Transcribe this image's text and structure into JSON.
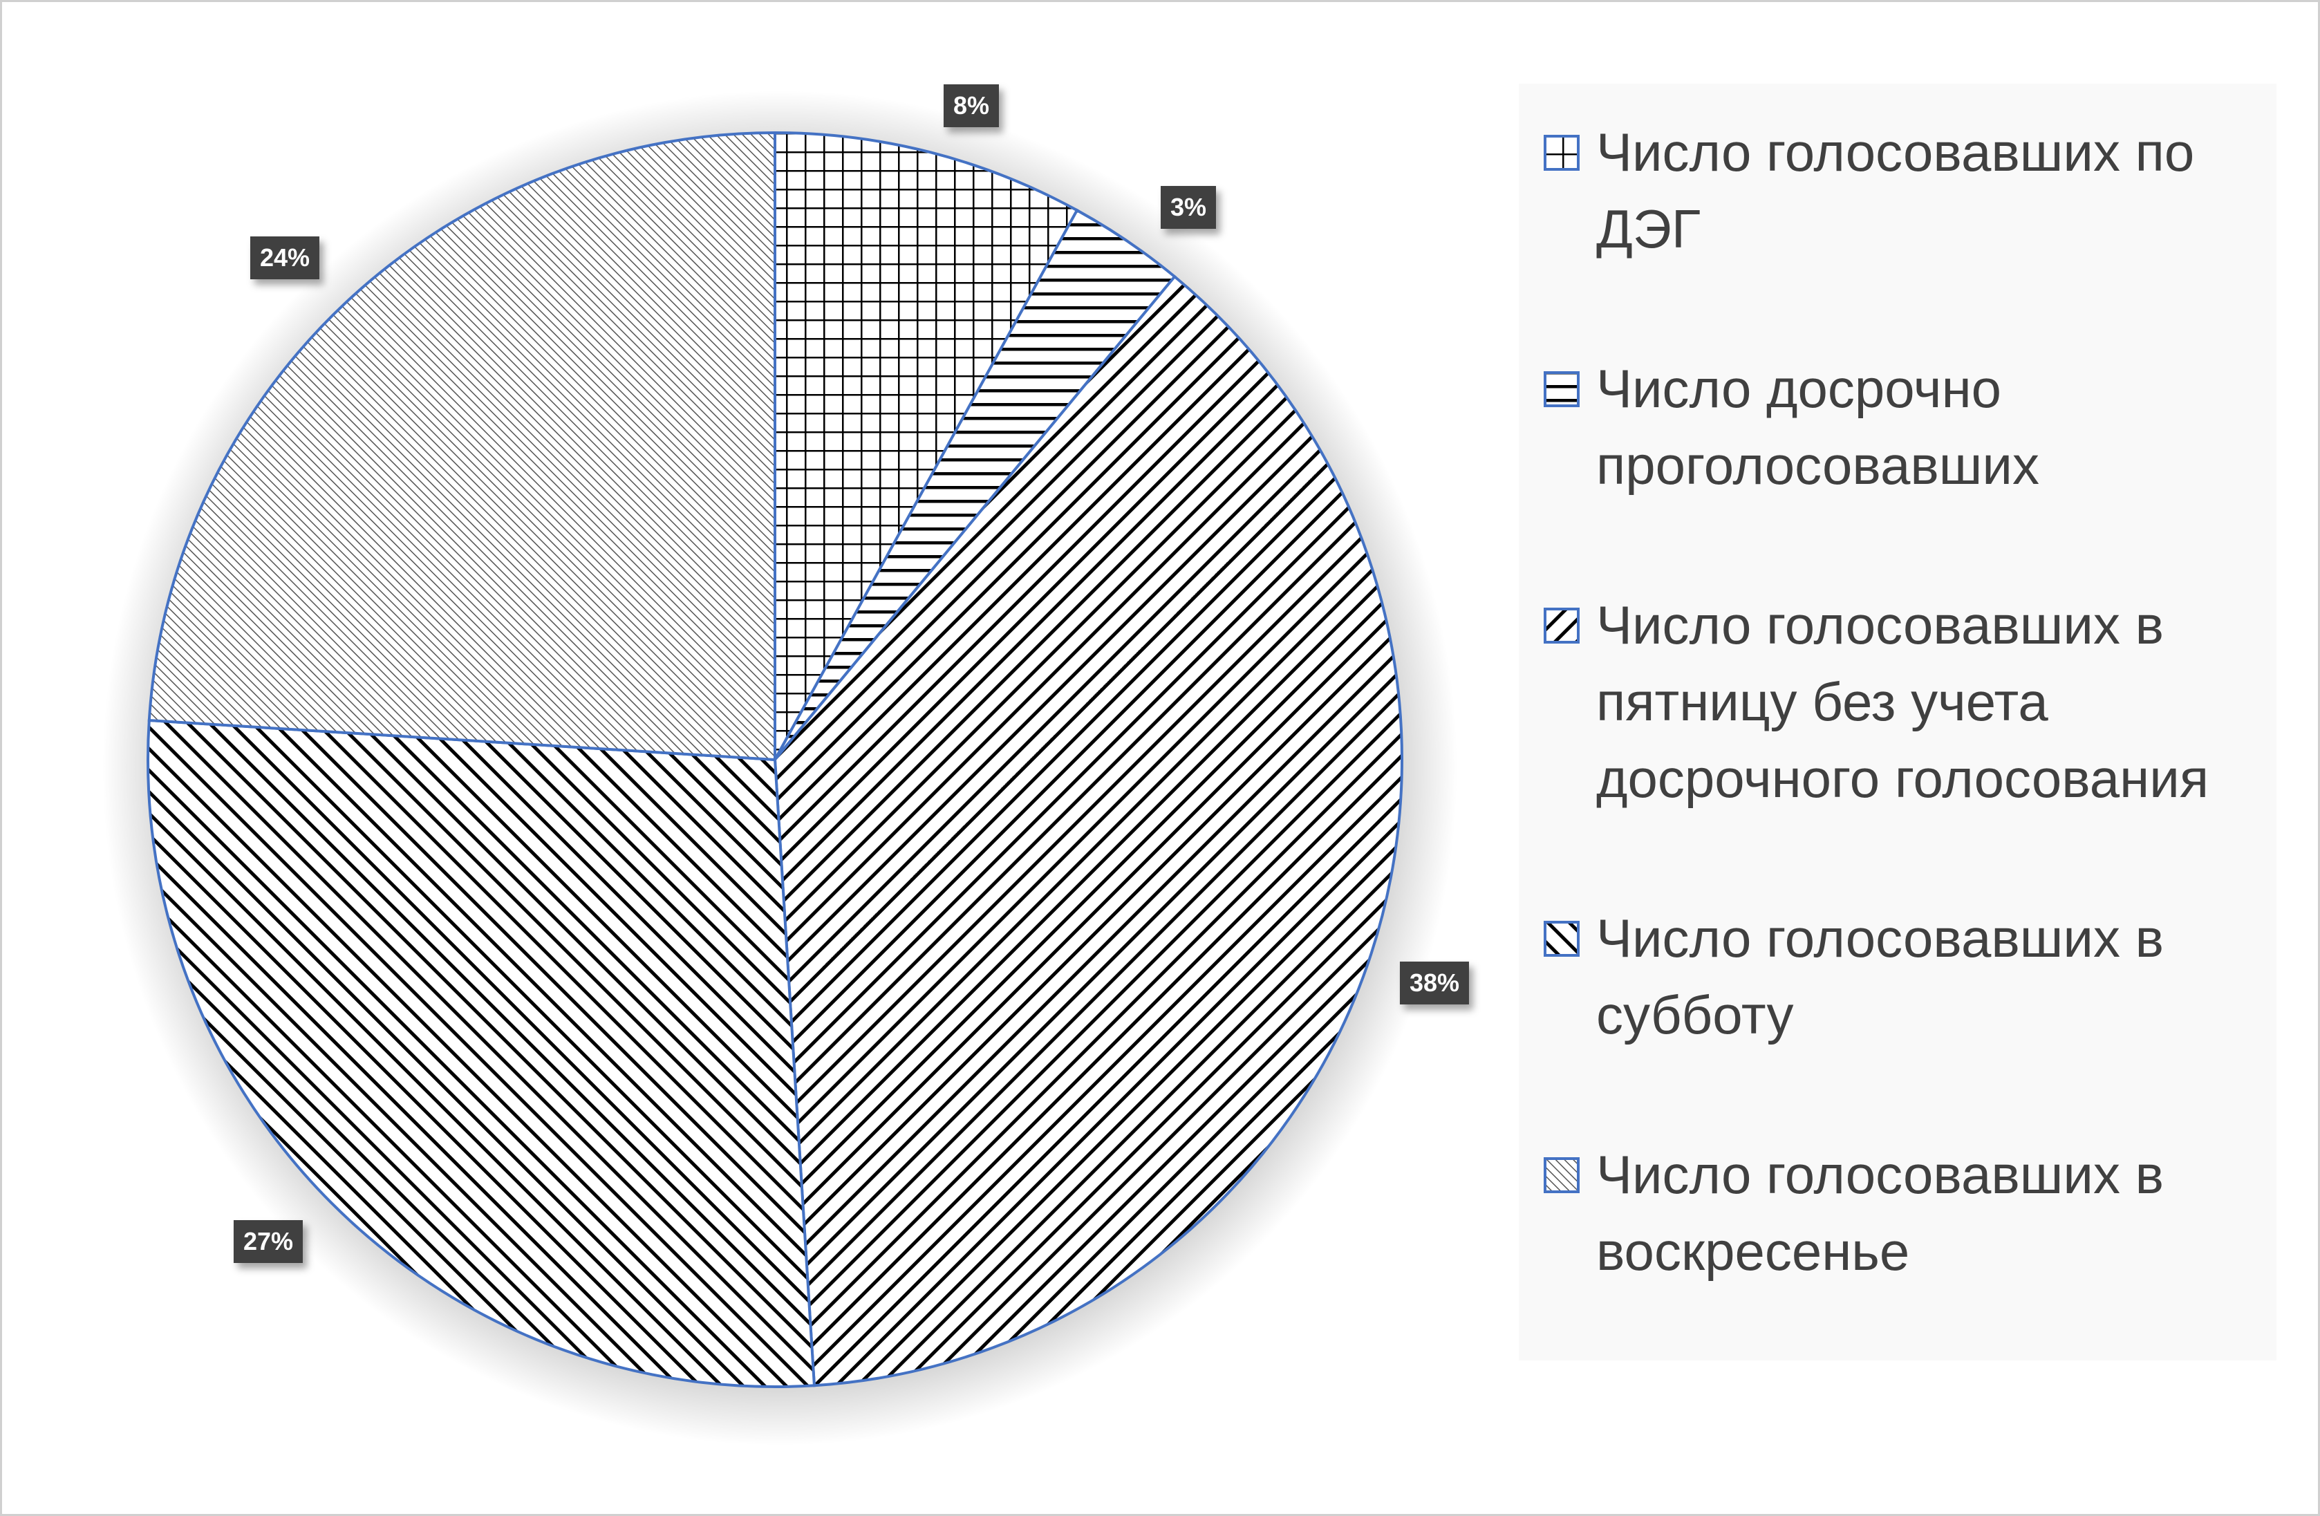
{
  "chart_data": {
    "type": "pie",
    "start": "top",
    "direction": "clockwise",
    "slices": [
      {
        "label": "Число голосовавших по ДЭГ",
        "value": 8,
        "data_label": "8%",
        "pattern": "grid"
      },
      {
        "label": "Число досрочно проголосовавших",
        "value": 3,
        "data_label": "3%",
        "pattern": "horizontal"
      },
      {
        "label": "Число голосовавших в пятницу без учета досрочного голосования",
        "value": 38,
        "data_label": "38%",
        "pattern": "wide-downward-diagonal"
      },
      {
        "label": "Число голосовавших в субботу",
        "value": 27,
        "data_label": "27%",
        "pattern": "wide-upward-diagonal"
      },
      {
        "label": "Число голосовавших в воскресенье",
        "value": 24,
        "data_label": "24%",
        "pattern": "dense-diagonal"
      }
    ],
    "legend_position": "right",
    "colors": {
      "outline": "#4472c4",
      "hatch": "#000000",
      "label_bg": "#404040",
      "legend_text": "#404040"
    }
  }
}
